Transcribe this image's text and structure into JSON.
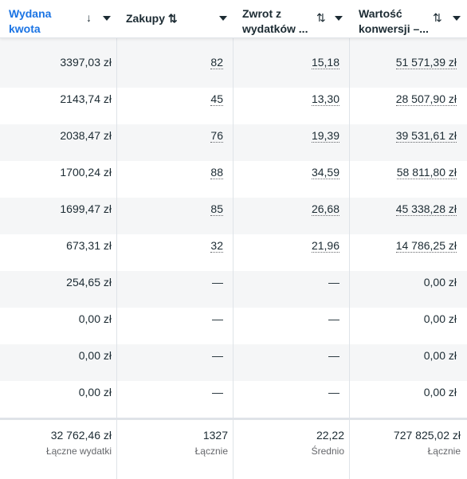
{
  "columns": [
    {
      "title_line1": "Wydana",
      "title_line2": "kwota",
      "sort_icon": "↓"
    },
    {
      "title_line1": "Zakupy",
      "title_line2": "",
      "sort_icon": "⇅"
    },
    {
      "title_line1": "Zwrot z",
      "title_line2": "wydatków ...",
      "sort_icon": "⇅"
    },
    {
      "title_line1": "Wartość",
      "title_line2": "konwersji –...",
      "sort_icon": "⇅"
    }
  ],
  "rows": [
    {
      "spent": "3397,03 zł",
      "purchases": "82",
      "roas": "15,18",
      "value": "51 571,39 zł"
    },
    {
      "spent": "2143,74 zł",
      "purchases": "45",
      "roas": "13,30",
      "value": "28 507,90 zł"
    },
    {
      "spent": "2038,47 zł",
      "purchases": "76",
      "roas": "19,39",
      "value": "39 531,61 zł"
    },
    {
      "spent": "1700,24 zł",
      "purchases": "88",
      "roas": "34,59",
      "value": "58 811,80 zł"
    },
    {
      "spent": "1699,47 zł",
      "purchases": "85",
      "roas": "26,68",
      "value": "45 338,28 zł"
    },
    {
      "spent": "673,31 zł",
      "purchases": "32",
      "roas": "21,96",
      "value": "14 786,25 zł"
    },
    {
      "spent": "254,65 zł",
      "purchases": "—",
      "roas": "—",
      "value": "0,00 zł"
    },
    {
      "spent": "0,00 zł",
      "purchases": "—",
      "roas": "—",
      "value": "0,00 zł"
    },
    {
      "spent": "0,00 zł",
      "purchases": "—",
      "roas": "—",
      "value": "0,00 zł"
    },
    {
      "spent": "0,00 zł",
      "purchases": "—",
      "roas": "—",
      "value": "0,00 zł"
    }
  ],
  "totals": [
    {
      "value": "32 762,46 zł",
      "label": "Łączne wydatki"
    },
    {
      "value": "1327",
      "label": "Łącznie"
    },
    {
      "value": "22,22",
      "label": "Średnio"
    },
    {
      "value": "727 825,02 zł",
      "label": "Łącznie"
    }
  ],
  "colors": {
    "accent": "#1b74e4",
    "shade": "#f5f6f7",
    "border": "#dfe3e8"
  }
}
